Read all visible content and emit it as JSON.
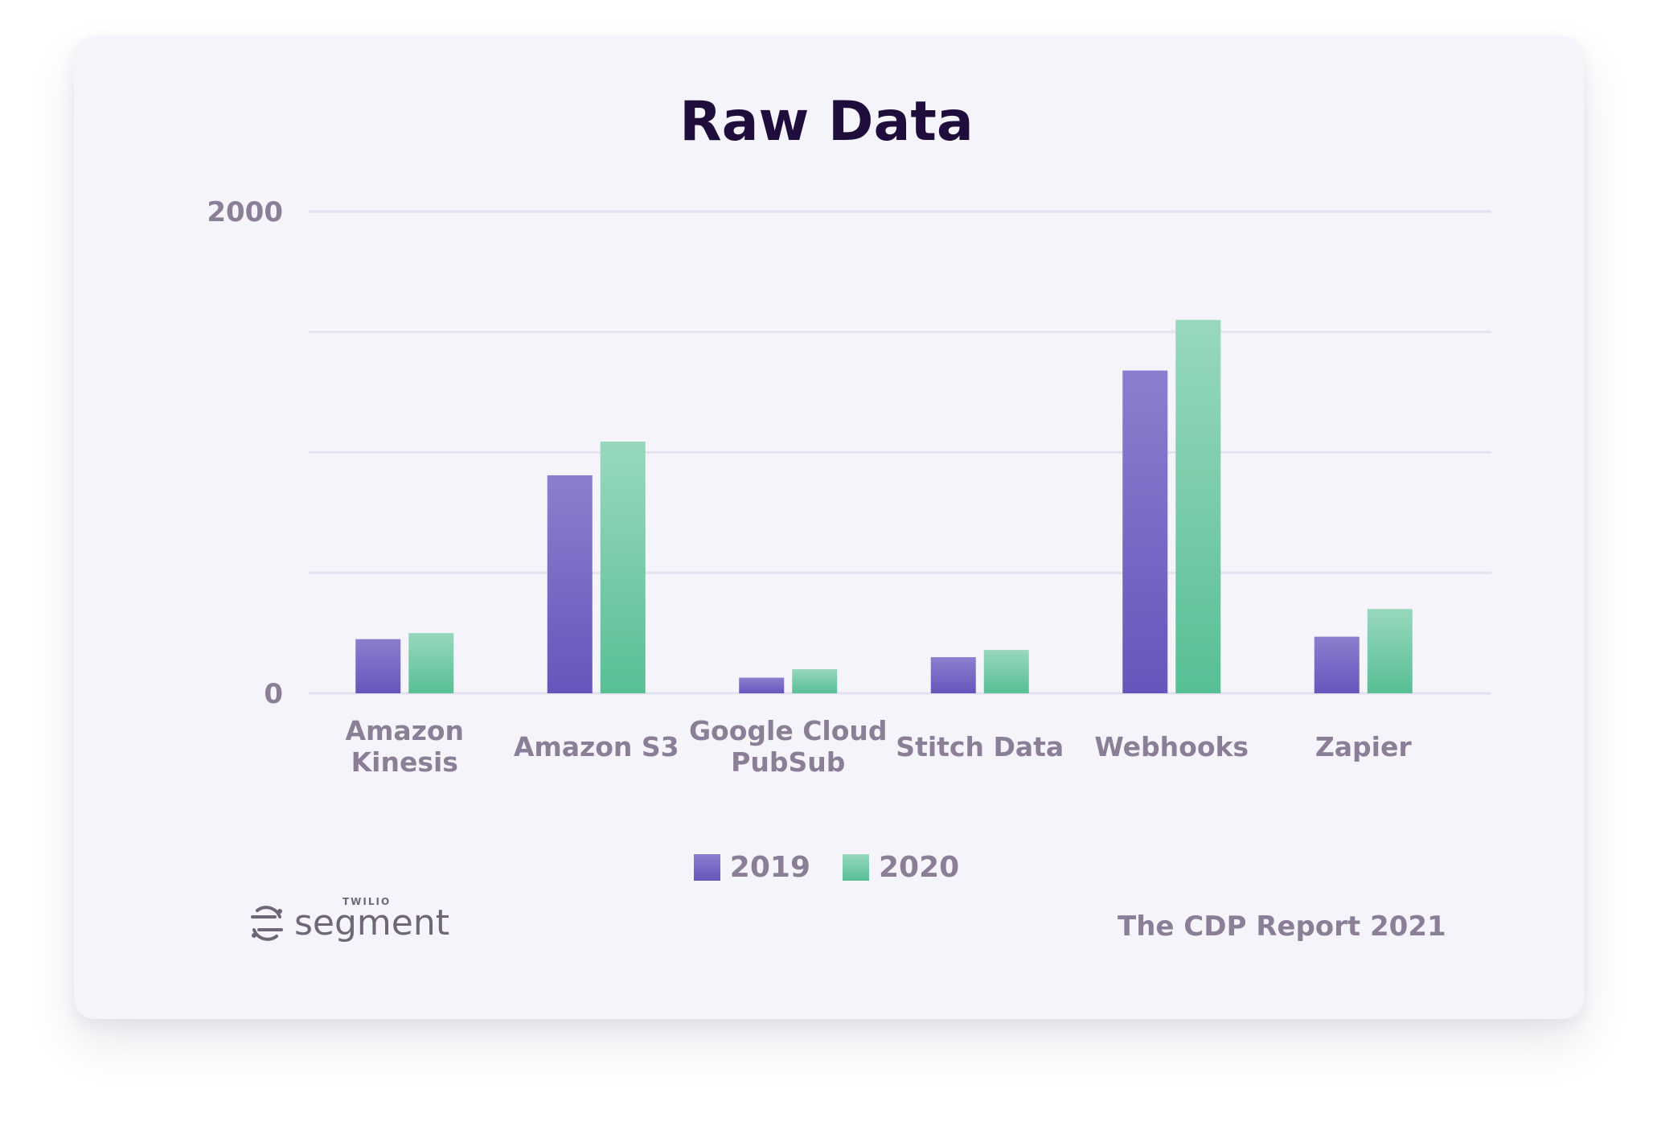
{
  "chart_data": {
    "type": "bar",
    "title": "Raw Data",
    "categories": [
      [
        "Amazon",
        "Kinesis"
      ],
      [
        "Amazon S3"
      ],
      [
        "Google Cloud",
        "PubSub"
      ],
      [
        "Stitch Data"
      ],
      [
        "Webhooks"
      ],
      [
        "Zapier"
      ]
    ],
    "series": [
      {
        "name": "2019",
        "values": [
          225,
          905,
          65,
          150,
          1340,
          235
        ],
        "color_top": "#8a7fce",
        "color_bottom": "#6656bc"
      },
      {
        "name": "2020",
        "values": [
          250,
          1045,
          100,
          180,
          1550,
          350
        ],
        "color_top": "#98d8bd",
        "color_bottom": "#58bf95"
      }
    ],
    "ylim": [
      0,
      2000
    ],
    "yticks": [
      "2000",
      "0"
    ],
    "grid": true,
    "legend_position": "bottom-center"
  },
  "footer": {
    "logo_small": "TWILIO",
    "logo_word": "segment",
    "report": "The CDP Report 2021"
  }
}
